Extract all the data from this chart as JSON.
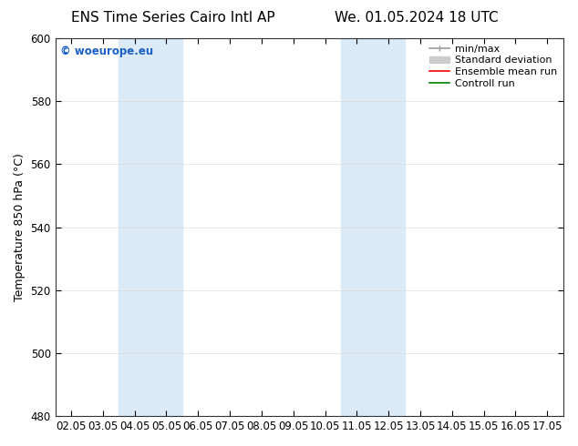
{
  "title_left": "ENS Time Series Cairo Intl AP",
  "title_right": "We. 01.05.2024 18 UTC",
  "ylabel": "Temperature 850 hPa (°C)",
  "xlim_dates": [
    "02.05",
    "03.05",
    "04.05",
    "05.05",
    "06.05",
    "07.05",
    "08.05",
    "09.05",
    "10.05",
    "11.05",
    "12.05",
    "13.05",
    "14.05",
    "15.05",
    "16.05",
    "17.05"
  ],
  "ylim": [
    480,
    600
  ],
  "yticks": [
    480,
    500,
    520,
    540,
    560,
    580,
    600
  ],
  "background_color": "#ffffff",
  "plot_bg_color": "#ffffff",
  "shaded_regions": [
    {
      "x0_label": "04.05",
      "x1_label": "06.05",
      "color": "#daeaf7"
    },
    {
      "x0_label": "11.05",
      "x1_label": "13.05",
      "color": "#daeaf7"
    }
  ],
  "watermark_text": "© woeurope.eu",
  "watermark_color": "#1a5fc8",
  "legend_items": [
    {
      "label": "min/max",
      "color": "#999999",
      "lw": 1.2
    },
    {
      "label": "Standard deviation",
      "color": "#cccccc",
      "lw": 8
    },
    {
      "label": "Ensemble mean run",
      "color": "#ff0000",
      "lw": 1.2
    },
    {
      "label": "Controll run",
      "color": "#008000",
      "lw": 1.2
    }
  ],
  "font_family": "DejaVu Sans",
  "title_fontsize": 11,
  "label_fontsize": 9,
  "tick_fontsize": 8.5,
  "legend_fontsize": 8
}
